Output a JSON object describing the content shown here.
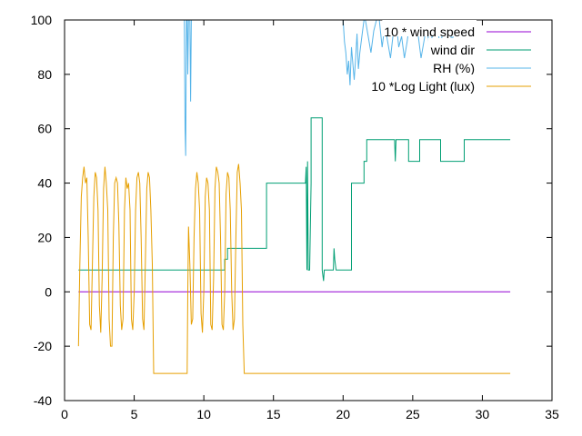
{
  "chart_data": {
    "type": "line",
    "title": "",
    "xlabel": "",
    "ylabel": "",
    "xlim": [
      0,
      35
    ],
    "ylim": [
      -40,
      100
    ],
    "xticks": [
      0,
      5,
      10,
      15,
      20,
      25,
      30,
      35
    ],
    "yticks": [
      -40,
      -20,
      0,
      20,
      40,
      60,
      80,
      100
    ],
    "grid": false,
    "legend": "top-right",
    "series": [
      {
        "name": "10 * wind speed",
        "color": "#9400d3",
        "x": [
          1,
          32
        ],
        "y": [
          0,
          0
        ]
      },
      {
        "name": "wind dir",
        "color": "#009e73",
        "x": [
          1,
          11.5,
          11.5,
          11.7,
          11.7,
          14.5,
          14.5,
          17.3,
          17.35,
          17.4,
          17.45,
          17.5,
          17.6,
          17.7,
          17.7,
          17.8,
          17.8,
          18.5,
          18.5,
          18.6,
          18.65,
          18.7,
          19.3,
          19.35,
          19.4,
          19.5,
          19.5,
          20.6,
          20.6,
          21.5,
          21.5,
          21.7,
          21.7,
          23.7,
          23.75,
          23.8,
          23.8,
          24.0,
          24.0,
          24.7,
          24.7,
          25.5,
          25.5,
          25.7,
          25.7,
          27.0,
          27.0,
          28.7,
          28.7,
          32
        ],
        "y": [
          8,
          8,
          12,
          12,
          16,
          16,
          40,
          40,
          46,
          8,
          48,
          8,
          8,
          40,
          64,
          64,
          64,
          64,
          8,
          4,
          8,
          8,
          8,
          16,
          12,
          8,
          8,
          8,
          40,
          40,
          48,
          48,
          56,
          56,
          48,
          56,
          56,
          56,
          56,
          56,
          48,
          48,
          56,
          56,
          56,
          56,
          48,
          48,
          56,
          56
        ]
      },
      {
        "name": "RH (%)",
        "color": "#56b4e9",
        "x": [
          8.6,
          8.65,
          8.7,
          8.75,
          8.8,
          8.85,
          8.9,
          8.95,
          9.0,
          9.05,
          9.1,
          20.0,
          20.1,
          20.2,
          20.3,
          20.4,
          20.5,
          20.6,
          20.7,
          20.8,
          20.9,
          21.0,
          21.1,
          21.2,
          21.3,
          21.4,
          21.5,
          21.6,
          21.8,
          22.0,
          22.2,
          22.4,
          22.6,
          22.8,
          23.0,
          23.2,
          23.4,
          23.6,
          23.8,
          24.0,
          24.2,
          24.4,
          24.6,
          24.8,
          25.0,
          25.2,
          25.4,
          25.6,
          25.8,
          26.0,
          26.2,
          26.4,
          26.6,
          26.8,
          27.0,
          27.2,
          27.4,
          27.6,
          27.8,
          28.0,
          28.2,
          28.4,
          28.6,
          28.8,
          29.0,
          29.2,
          29.4
        ],
        "y": [
          100,
          60,
          50,
          100,
          100,
          80,
          100,
          100,
          100,
          70,
          100,
          100,
          92,
          88,
          80,
          85,
          76,
          90,
          84,
          78,
          86,
          95,
          82,
          88,
          92,
          96,
          100,
          100,
          94,
          88,
          96,
          100,
          100,
          90,
          98,
          92,
          86,
          95,
          100,
          90,
          94,
          86,
          92,
          100,
          96,
          100,
          94,
          86,
          92,
          98,
          90,
          94,
          100,
          96,
          90,
          98,
          94,
          100,
          92,
          96,
          100,
          98,
          94,
          100,
          96,
          98,
          100
        ]
      },
      {
        "name": "10 *Log Light (lux)",
        "color": "#e69f00",
        "x": [
          1,
          1.1,
          1.2,
          1.3,
          1.4,
          1.5,
          1.6,
          1.7,
          1.8,
          1.9,
          2.0,
          2.1,
          2.2,
          2.3,
          2.4,
          2.5,
          2.6,
          2.7,
          2.8,
          2.9,
          3.0,
          3.1,
          3.2,
          3.3,
          3.4,
          3.5,
          3.6,
          3.7,
          3.8,
          3.9,
          4.0,
          4.1,
          4.2,
          4.3,
          4.4,
          4.5,
          4.6,
          4.7,
          4.8,
          4.9,
          5.0,
          5.1,
          5.2,
          5.3,
          5.4,
          5.5,
          5.6,
          5.7,
          5.8,
          5.9,
          6.0,
          6.1,
          6.2,
          6.3,
          6.4,
          6.5,
          6.6,
          6.7,
          6.8,
          8.8,
          8.85,
          8.9,
          9.0,
          9.1,
          9.2,
          9.3,
          9.4,
          9.5,
          9.6,
          9.7,
          9.8,
          9.9,
          10.0,
          10.1,
          10.2,
          10.3,
          10.4,
          10.5,
          10.6,
          10.7,
          10.8,
          10.9,
          11.0,
          11.1,
          11.2,
          11.3,
          11.4,
          11.5,
          11.6,
          11.7,
          11.8,
          11.9,
          12.0,
          12.1,
          12.2,
          12.3,
          12.4,
          12.5,
          12.6,
          12.7,
          12.8,
          12.9,
          13.0,
          32
        ],
        "y": [
          -20,
          10,
          35,
          42,
          46,
          40,
          42,
          20,
          -12,
          -14,
          10,
          35,
          44,
          42,
          30,
          -5,
          -15,
          5,
          38,
          46,
          40,
          30,
          -10,
          -20,
          -20,
          20,
          40,
          42,
          40,
          25,
          -5,
          -14,
          -10,
          30,
          42,
          38,
          40,
          30,
          -10,
          -14,
          0,
          30,
          42,
          44,
          40,
          20,
          -10,
          -14,
          10,
          38,
          44,
          42,
          30,
          10,
          -30,
          -30,
          -30,
          -30,
          -30,
          -30,
          0,
          24,
          10,
          -12,
          -10,
          20,
          38,
          44,
          40,
          30,
          -8,
          -15,
          0,
          35,
          42,
          40,
          30,
          -12,
          -14,
          5,
          38,
          46,
          44,
          40,
          20,
          -12,
          -14,
          0,
          36,
          44,
          42,
          30,
          0,
          -14,
          -10,
          20,
          44,
          47,
          40,
          30,
          -12,
          -30,
          -30,
          -30
        ]
      }
    ]
  }
}
